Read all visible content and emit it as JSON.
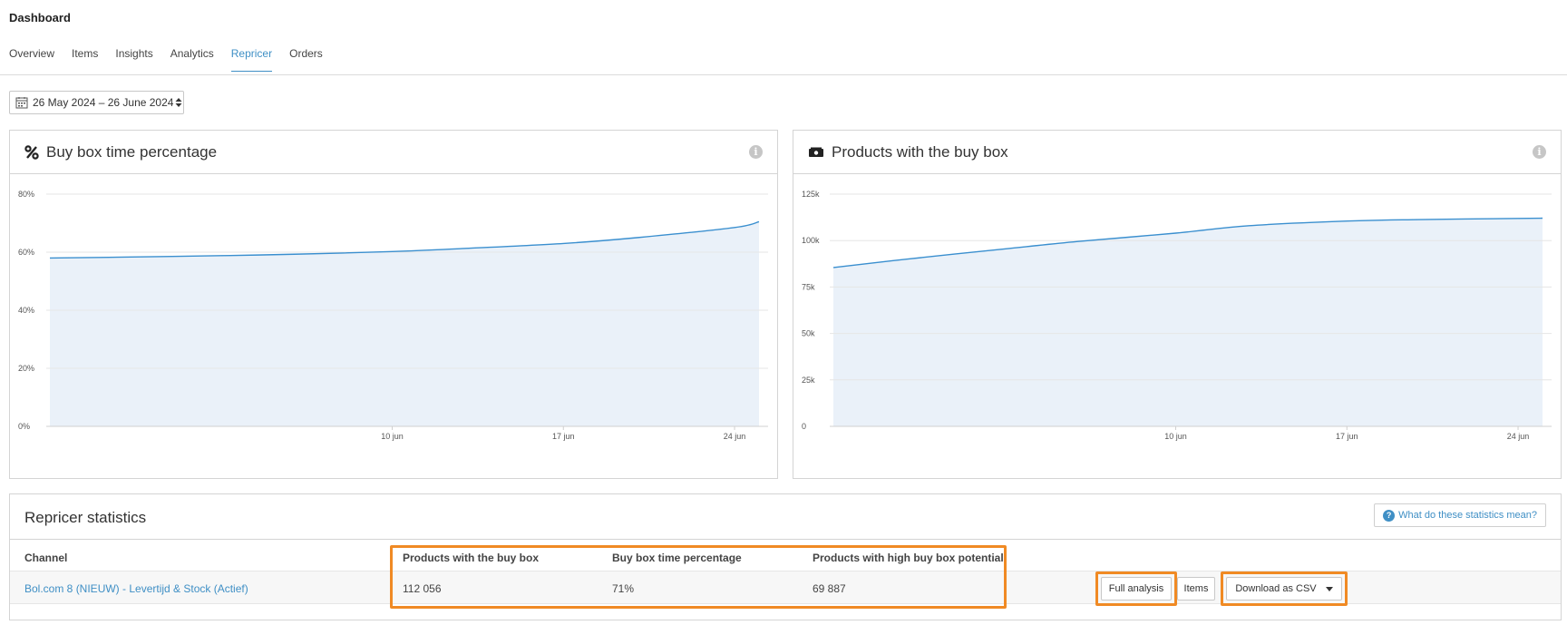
{
  "header": {
    "title": "Dashboard"
  },
  "tabs": [
    {
      "label": "Overview",
      "active": false
    },
    {
      "label": "Items",
      "active": false
    },
    {
      "label": "Insights",
      "active": false
    },
    {
      "label": "Analytics",
      "active": false
    },
    {
      "label": "Repricer",
      "active": true
    },
    {
      "label": "Orders",
      "active": false
    }
  ],
  "date_range": {
    "value": "26 May 2024 – 26 June 2024",
    "icon": "calendar-icon"
  },
  "colors": {
    "accent": "#3f8fc5",
    "line": "#3a8fcf",
    "area": "#eaf1f9",
    "highlight": "#f08a24"
  },
  "chart_data": [
    {
      "type": "area",
      "title": "Buy box time percentage",
      "title_icon": "percent-icon",
      "ylim": [
        0,
        80
      ],
      "y_ticks": [
        "0%",
        "20%",
        "40%",
        "60%",
        "80%"
      ],
      "y_tick_values": [
        0,
        20,
        40,
        60,
        80
      ],
      "x_ticks": [
        "10 jun",
        "17 jun",
        "24 jun"
      ],
      "x_range": [
        "27 May",
        "25 Jun"
      ],
      "grid": true,
      "series": [
        {
          "x": [
            "27 May",
            "30 May",
            "3 Jun",
            "6 Jun",
            "10 Jun",
            "13 Jun",
            "17 Jun",
            "20 Jun",
            "24 Jun",
            "25 Jun"
          ],
          "values": [
            58,
            58.3,
            58.8,
            59.3,
            60.2,
            61.3,
            63,
            65,
            68.5,
            70.5
          ]
        }
      ]
    },
    {
      "type": "area",
      "title": "Products with the buy box",
      "title_icon": "money-icon",
      "ylim": [
        0,
        125000
      ],
      "y_ticks": [
        "0",
        "25k",
        "50k",
        "75k",
        "100k",
        "125k"
      ],
      "y_tick_values": [
        0,
        25000,
        50000,
        75000,
        100000,
        125000
      ],
      "x_ticks": [
        "10 jun",
        "17 jun",
        "24 jun"
      ],
      "x_range": [
        "27 May",
        "25 Jun"
      ],
      "grid": true,
      "series": [
        {
          "x": [
            "27 May",
            "30 May",
            "3 Jun",
            "6 Jun",
            "10 Jun",
            "13 Jun",
            "17 Jun",
            "20 Jun",
            "24 Jun",
            "25 Jun"
          ],
          "values": [
            85500,
            90000,
            95500,
            99500,
            104000,
            108000,
            110500,
            111300,
            111900,
            112056
          ]
        }
      ]
    }
  ],
  "stats": {
    "title": "Repricer statistics",
    "help_label": "What do these statistics mean?",
    "columns": {
      "channel": "Channel",
      "products_with_buy_box": "Products with the buy box",
      "buy_box_time_percentage": "Buy box time percentage",
      "high_potential": "Products with high buy box potential"
    },
    "row": {
      "channel": "Bol.com 8 (NIEUW) - Levertijd & Stock (Actief)",
      "products_with_buy_box": "112 056",
      "buy_box_time_percentage": "71%",
      "high_potential": "69 887"
    },
    "buttons": {
      "full_analysis": "Full analysis",
      "items": "Items",
      "download": "Download as CSV"
    }
  }
}
